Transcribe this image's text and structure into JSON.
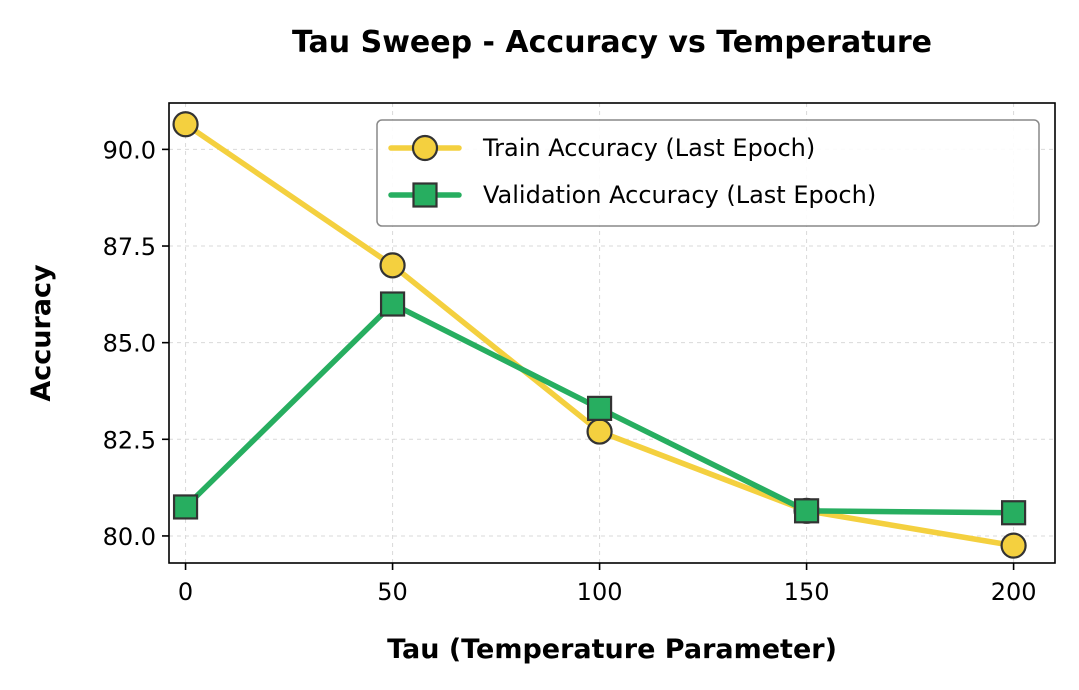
{
  "chart_data": {
    "type": "line",
    "title": "Tau Sweep - Accuracy vs Temperature",
    "xlabel": "Tau (Temperature Parameter)",
    "ylabel": "Accuracy",
    "x": [
      0,
      50,
      100,
      150,
      200
    ],
    "xlim": [
      -4,
      210
    ],
    "ylim": [
      79.3,
      91.2
    ],
    "xticks": [
      0,
      50,
      100,
      150,
      200
    ],
    "xtick_labels": [
      "0",
      "50",
      "100",
      "150",
      "200"
    ],
    "yticks": [
      80.0,
      82.5,
      85.0,
      87.5,
      90.0
    ],
    "ytick_labels": [
      "80.0",
      "82.5",
      "85.0",
      "87.5",
      "90.0"
    ],
    "grid": true,
    "legend_position": "top-right",
    "series": [
      {
        "name": "Train Accuracy (Last Epoch)",
        "values": [
          90.65,
          87.0,
          82.7,
          80.65,
          79.75
        ],
        "color": "#f4d03f",
        "marker": "circle"
      },
      {
        "name": "Validation Accuracy (Last Epoch)",
        "values": [
          80.75,
          86.0,
          83.3,
          80.65,
          80.6
        ],
        "color": "#27ae60",
        "marker": "square"
      }
    ]
  }
}
